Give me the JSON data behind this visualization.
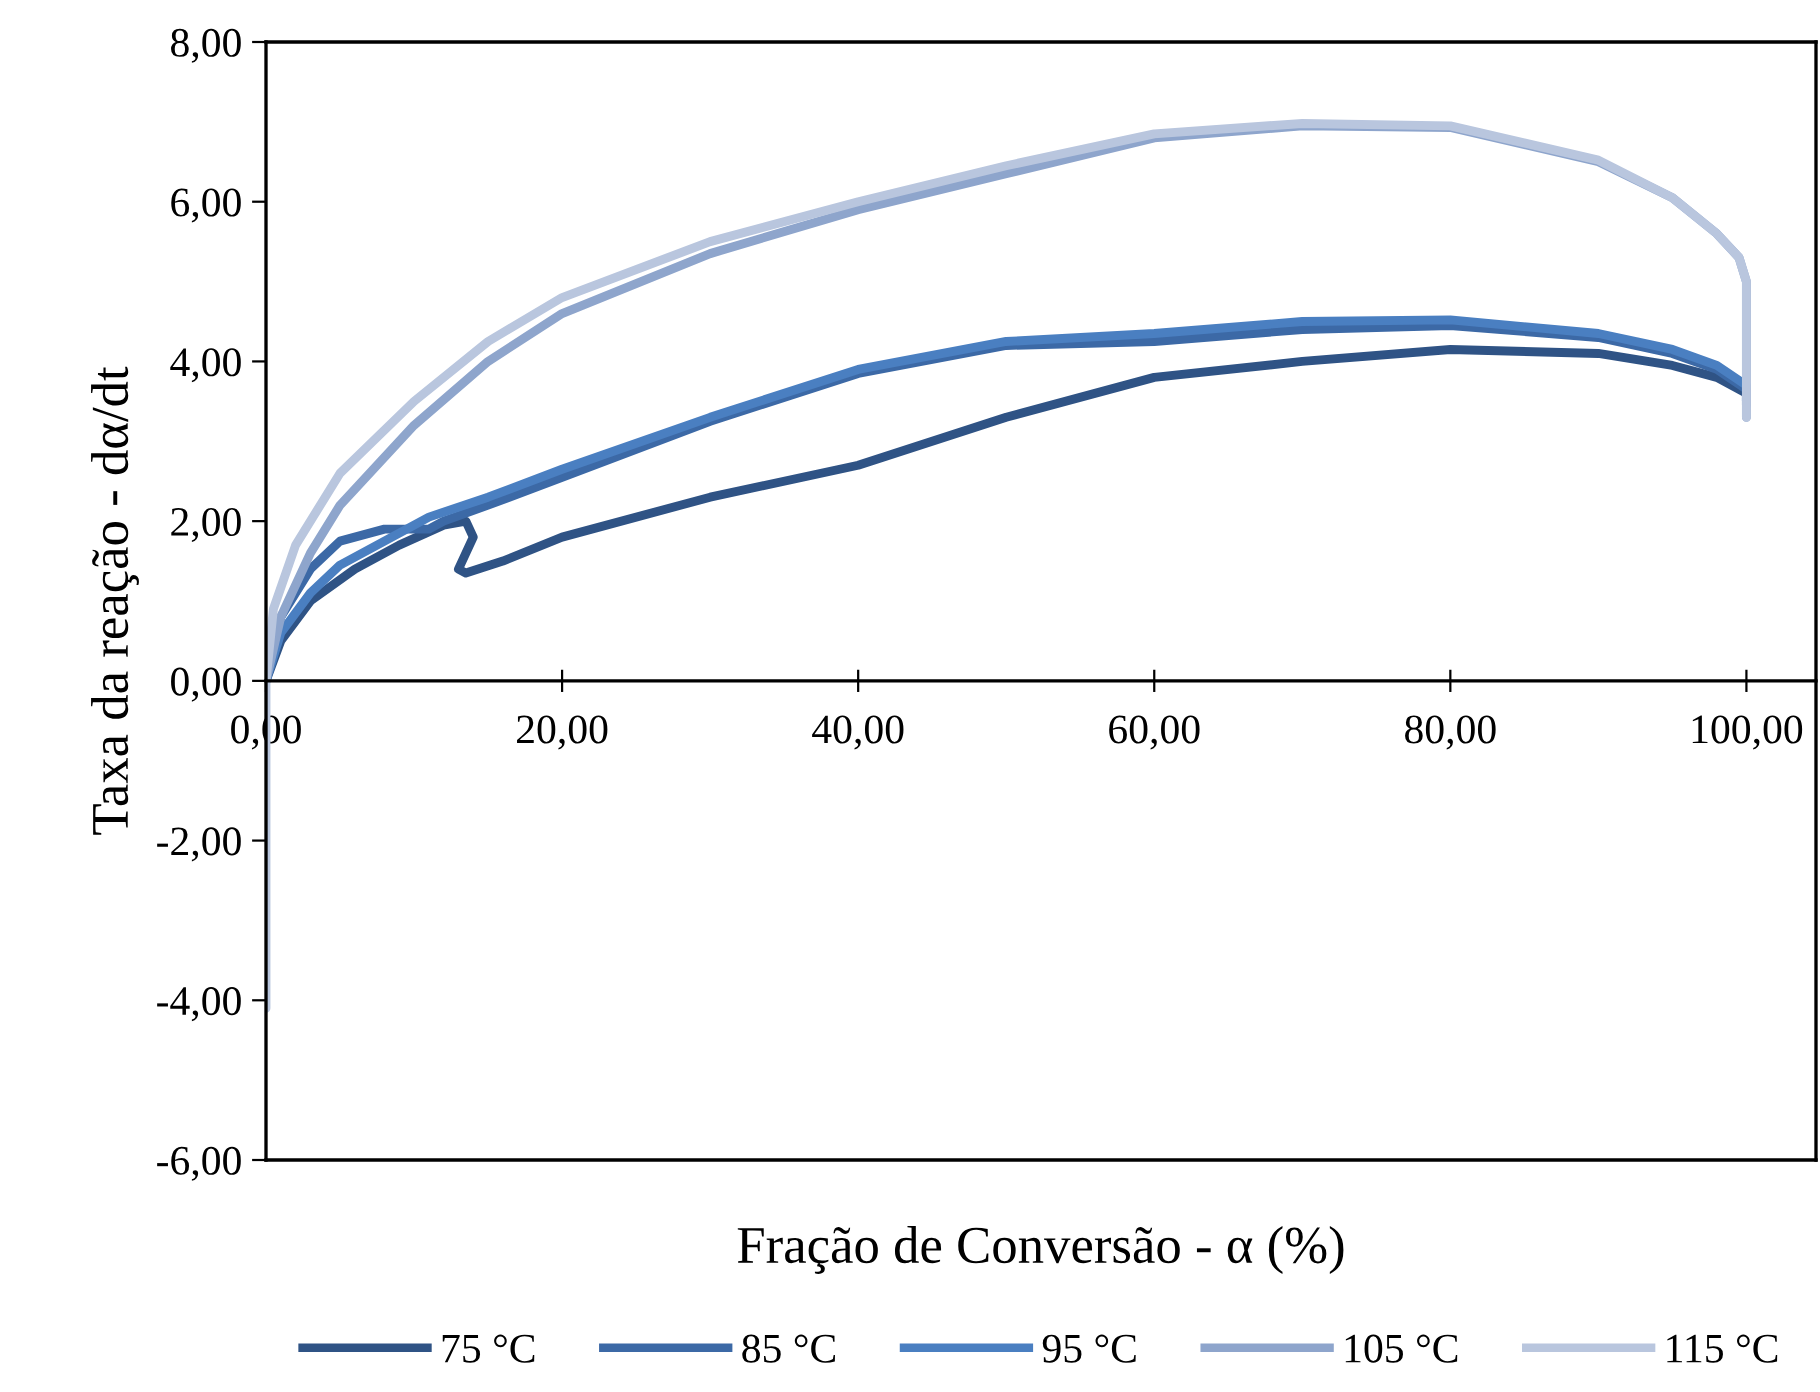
{
  "chart_data": {
    "type": "line",
    "xlabel": "Fração de Conversão - α (%)",
    "ylabel": "Taxa da reação - dα/dt",
    "xlim": [
      0,
      104.7
    ],
    "ylim": [
      -6,
      8
    ],
    "xticks": [
      {
        "value": 0,
        "label": "0,00"
      },
      {
        "value": 20,
        "label": "20,00"
      },
      {
        "value": 40,
        "label": "40,00"
      },
      {
        "value": 60,
        "label": "60,00"
      },
      {
        "value": 80,
        "label": "80,00"
      },
      {
        "value": 100,
        "label": "100,00"
      }
    ],
    "yticks": [
      {
        "value": -6,
        "label": "-6,00"
      },
      {
        "value": -4,
        "label": "-4,00"
      },
      {
        "value": -2,
        "label": "-2,00"
      },
      {
        "value": 0,
        "label": "0,00"
      },
      {
        "value": 2,
        "label": "2,00"
      },
      {
        "value": 4,
        "label": "4,00"
      },
      {
        "value": 6,
        "label": "6,00"
      },
      {
        "value": 8,
        "label": "8,00"
      }
    ],
    "grid": false,
    "legend": "bottom",
    "marker": "none",
    "line_style": "solid",
    "series": [
      {
        "name": "75 °C",
        "color": "#2f5385",
        "x": [
          0,
          1,
          3,
          6,
          9,
          12,
          13.5,
          14,
          13.5,
          13,
          13.5,
          16,
          20,
          30,
          40,
          50,
          60,
          70,
          80,
          90,
          95,
          98,
          100,
          100
        ],
        "values": [
          0,
          0.5,
          1.0,
          1.4,
          1.7,
          1.95,
          2.0,
          1.8,
          1.6,
          1.4,
          1.35,
          1.5,
          1.8,
          2.3,
          2.7,
          3.3,
          3.8,
          4.0,
          4.15,
          4.1,
          3.95,
          3.8,
          3.6,
          3.45
        ]
      },
      {
        "name": "85 °C",
        "color": "#3c69a6",
        "x": [
          0,
          1,
          3,
          5,
          8,
          11,
          12,
          15,
          20,
          30,
          40,
          50,
          60,
          70,
          80,
          90,
          95,
          98,
          100,
          100
        ],
        "values": [
          0,
          0.8,
          1.4,
          1.75,
          1.9,
          1.9,
          2.0,
          2.2,
          2.55,
          3.25,
          3.85,
          4.2,
          4.25,
          4.4,
          4.45,
          4.3,
          4.1,
          3.9,
          3.65,
          3.5
        ]
      },
      {
        "name": "95 °C",
        "color": "#4a7fc1",
        "x": [
          0,
          1,
          3,
          5,
          8,
          11,
          15,
          20,
          30,
          40,
          50,
          60,
          70,
          80,
          90,
          95,
          98,
          100,
          100
        ],
        "values": [
          0,
          0.6,
          1.1,
          1.45,
          1.75,
          2.05,
          2.3,
          2.65,
          3.3,
          3.9,
          4.25,
          4.35,
          4.5,
          4.52,
          4.35,
          4.15,
          3.95,
          3.7,
          3.5
        ]
      },
      {
        "name": "105 °C",
        "color": "#8ea5cc",
        "x": [
          0,
          1,
          3,
          5,
          10,
          15,
          20,
          30,
          40,
          50,
          60,
          70,
          80,
          90,
          95,
          98,
          99.5,
          100,
          100
        ],
        "values": [
          0,
          0.8,
          1.6,
          2.2,
          3.2,
          4.0,
          4.6,
          5.35,
          5.9,
          6.35,
          6.8,
          6.95,
          6.93,
          6.5,
          6.05,
          5.6,
          5.3,
          5.0,
          3.3
        ]
      },
      {
        "name": "115 °C",
        "color": "#b9c6de",
        "x": [
          0,
          0,
          0.5,
          2,
          5,
          10,
          15,
          20,
          30,
          40,
          50,
          60,
          70,
          80,
          90,
          95,
          98,
          99.5,
          100,
          100
        ],
        "values": [
          -4.1,
          0,
          0.9,
          1.7,
          2.6,
          3.5,
          4.25,
          4.8,
          5.5,
          6.0,
          6.45,
          6.85,
          6.98,
          6.95,
          6.52,
          6.05,
          5.6,
          5.3,
          5.0,
          3.3
        ]
      }
    ]
  }
}
